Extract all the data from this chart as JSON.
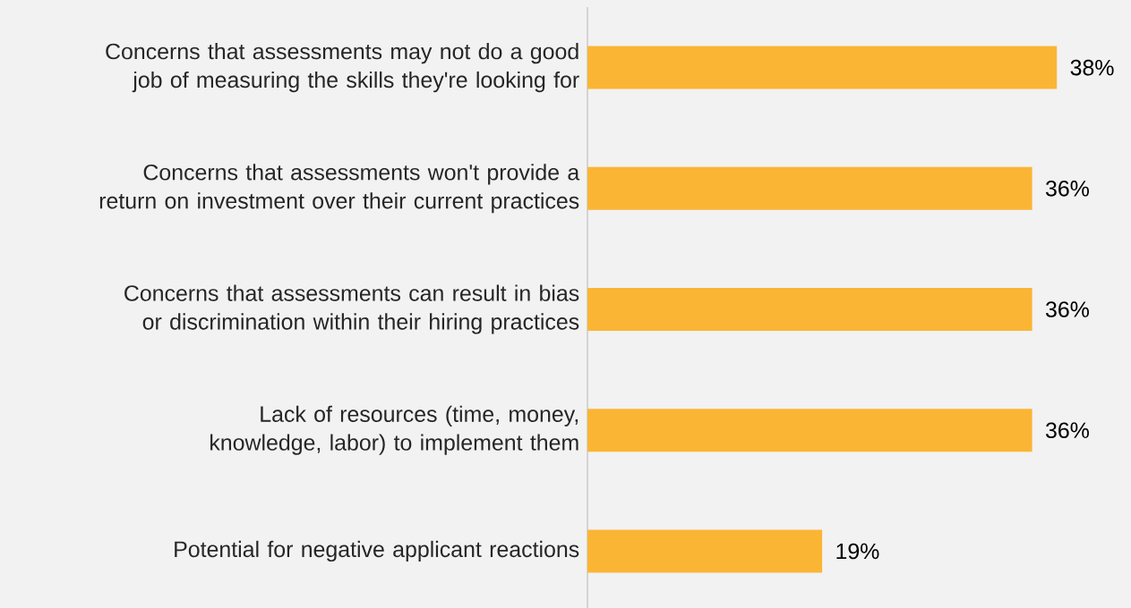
{
  "chart_data": {
    "type": "bar",
    "orientation": "horizontal",
    "categories": [
      "Concerns that assessments may not do a good job of measuring the skills they're looking for",
      "Concerns that assessments won't provide a return on investment over their current practices",
      "Concerns that assessments can result in bias or discrimination within their hiring practices",
      "Lack of resources (time, money, knowledge, labor) to implement them",
      "Potential for negative applicant reactions"
    ],
    "values": [
      38,
      36,
      36,
      36,
      19
    ],
    "value_labels": [
      "38%",
      "36%",
      "36%",
      "36%",
      "19%"
    ],
    "color": "#fbb535",
    "xlim": [
      0,
      44
    ]
  }
}
